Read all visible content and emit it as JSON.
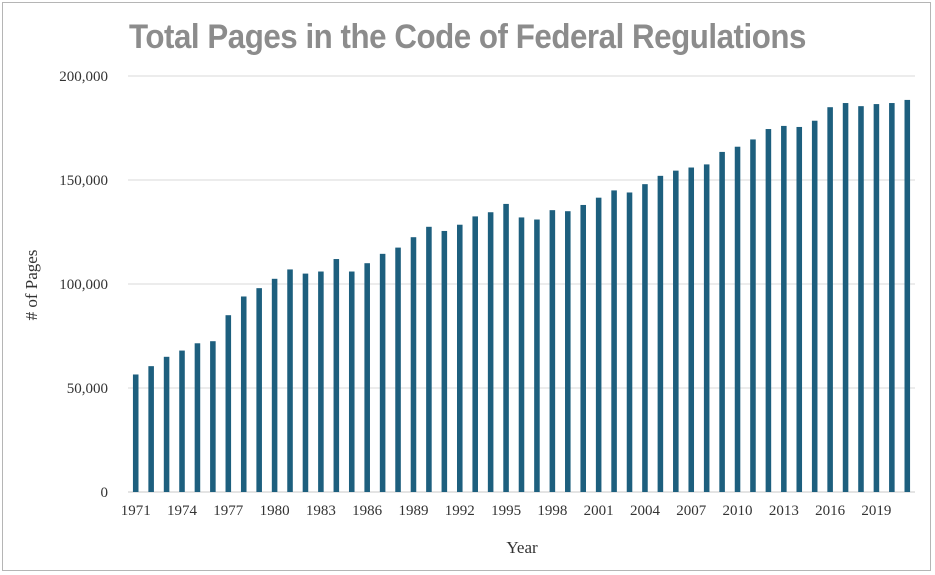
{
  "chart_data": {
    "type": "bar",
    "title": "Total Pages in the Code of Federal Regulations",
    "xlabel": "Year",
    "ylabel": "# of Pages",
    "ylim": [
      0,
      200000
    ],
    "yticks": [
      0,
      50000,
      100000,
      150000,
      200000
    ],
    "ytick_labels": [
      "0",
      "50,000",
      "100,000",
      "150,000",
      "200,000"
    ],
    "xtick_labels": [
      "1971",
      "1974",
      "1977",
      "1980",
      "1983",
      "1986",
      "1989",
      "1992",
      "1995",
      "1998",
      "2001",
      "2004",
      "2007",
      "2010",
      "2013",
      "2016",
      "2019"
    ],
    "grid": true,
    "bar_color": "#1d5f7e",
    "categories": [
      "1971",
      "1972",
      "1973",
      "1974",
      "1975",
      "1976",
      "1977",
      "1978",
      "1979",
      "1980",
      "1981",
      "1982",
      "1983",
      "1984",
      "1985",
      "1986",
      "1987",
      "1988",
      "1989",
      "1990",
      "1991",
      "1992",
      "1993",
      "1994",
      "1995",
      "1996",
      "1997",
      "1998",
      "1999",
      "2000",
      "2001",
      "2002",
      "2003",
      "2004",
      "2005",
      "2006",
      "2007",
      "2008",
      "2009",
      "2010",
      "2011",
      "2012",
      "2013",
      "2014",
      "2015",
      "2016",
      "2017",
      "2018",
      "2019",
      "2020",
      "2021"
    ],
    "values": [
      56500,
      60500,
      65000,
      68000,
      71500,
      72500,
      85000,
      94000,
      98000,
      102500,
      107000,
      105000,
      106000,
      112000,
      106000,
      110000,
      114500,
      117500,
      122500,
      127500,
      125500,
      128500,
      132500,
      134500,
      138500,
      132000,
      131000,
      135500,
      135000,
      138000,
      141500,
      145000,
      144000,
      148000,
      152000,
      154500,
      156000,
      157500,
      163500,
      166000,
      169500,
      174500,
      176000,
      175500,
      178500,
      185000,
      187000,
      185500,
      186500,
      187000,
      188500
    ]
  }
}
